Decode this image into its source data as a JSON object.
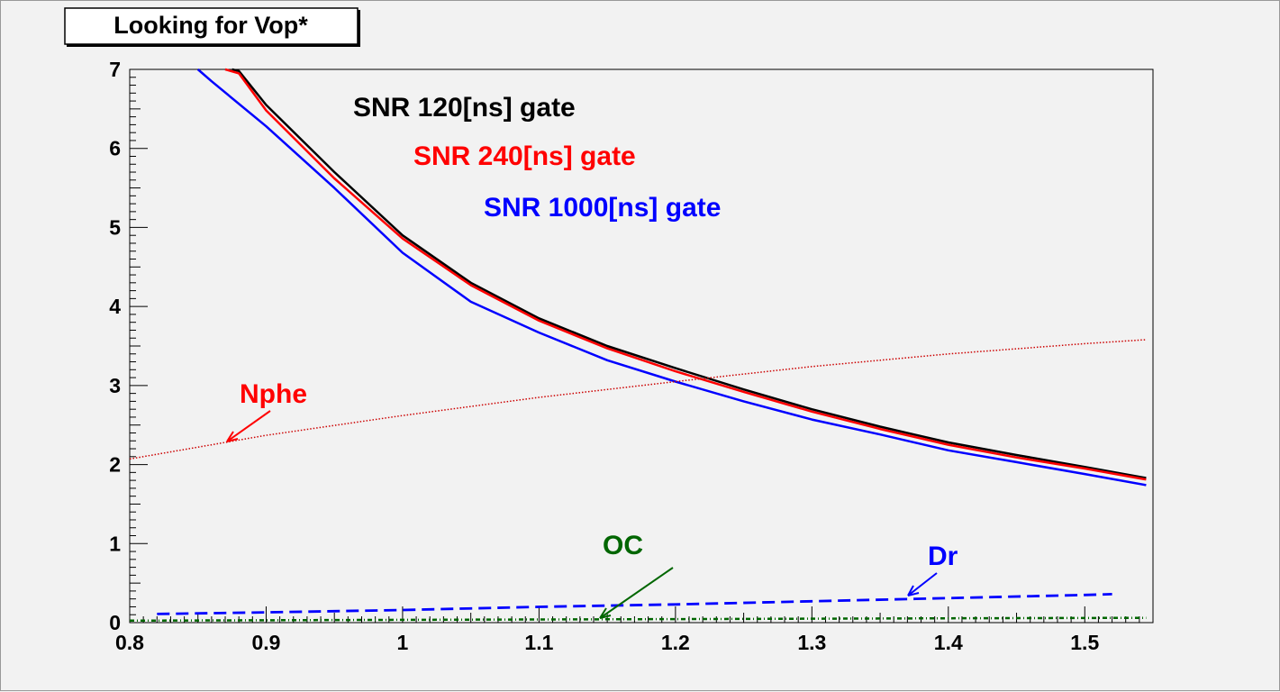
{
  "chart_data": {
    "type": "line",
    "title": "Looking for Vop*",
    "xlim": [
      0.8,
      1.55
    ],
    "ylim": [
      0,
      7
    ],
    "x_ticks": [
      "0.8",
      "0.9",
      "1",
      "1.1",
      "1.2",
      "1.3",
      "1.4",
      "1.5"
    ],
    "y_ticks": [
      "0",
      "1",
      "2",
      "3",
      "4",
      "5",
      "6",
      "7"
    ],
    "grid": false,
    "legend_placement": "top-center, inline text",
    "series": [
      {
        "name": "SNR 120[ns] gate",
        "color": "#000000",
        "style": "solid",
        "points": [
          [
            0.875,
            7.0
          ],
          [
            0.88,
            6.98
          ],
          [
            0.9,
            6.55
          ],
          [
            0.95,
            5.7
          ],
          [
            1.0,
            4.9
          ],
          [
            1.05,
            4.3
          ],
          [
            1.1,
            3.85
          ],
          [
            1.15,
            3.5
          ],
          [
            1.2,
            3.22
          ],
          [
            1.25,
            2.95
          ],
          [
            1.3,
            2.7
          ],
          [
            1.35,
            2.48
          ],
          [
            1.4,
            2.28
          ],
          [
            1.45,
            2.12
          ],
          [
            1.5,
            1.97
          ],
          [
            1.545,
            1.83
          ]
        ]
      },
      {
        "name": "SNR 240[ns] gate",
        "color": "#ff0000",
        "style": "solid",
        "points": [
          [
            0.87,
            7.0
          ],
          [
            0.88,
            6.95
          ],
          [
            0.9,
            6.48
          ],
          [
            0.95,
            5.62
          ],
          [
            1.0,
            4.86
          ],
          [
            1.05,
            4.27
          ],
          [
            1.1,
            3.82
          ],
          [
            1.15,
            3.47
          ],
          [
            1.2,
            3.18
          ],
          [
            1.25,
            2.92
          ],
          [
            1.3,
            2.67
          ],
          [
            1.35,
            2.45
          ],
          [
            1.4,
            2.25
          ],
          [
            1.45,
            2.09
          ],
          [
            1.5,
            1.95
          ],
          [
            1.545,
            1.81
          ]
        ]
      },
      {
        "name": "SNR 1000[ns] gate",
        "color": "#0000ff",
        "style": "solid",
        "points": [
          [
            0.85,
            7.0
          ],
          [
            0.86,
            6.85
          ],
          [
            0.9,
            6.28
          ],
          [
            0.95,
            5.5
          ],
          [
            1.0,
            4.68
          ],
          [
            1.05,
            4.06
          ],
          [
            1.1,
            3.67
          ],
          [
            1.15,
            3.32
          ],
          [
            1.2,
            3.05
          ],
          [
            1.25,
            2.8
          ],
          [
            1.3,
            2.57
          ],
          [
            1.35,
            2.38
          ],
          [
            1.4,
            2.18
          ],
          [
            1.45,
            2.03
          ],
          [
            1.5,
            1.88
          ],
          [
            1.545,
            1.74
          ]
        ]
      },
      {
        "name": "Nphe",
        "color": "#cc0000",
        "style": "dotted",
        "points": [
          [
            0.8,
            2.07
          ],
          [
            0.9,
            2.37
          ],
          [
            1.0,
            2.62
          ],
          [
            1.1,
            2.85
          ],
          [
            1.2,
            3.05
          ],
          [
            1.3,
            3.24
          ],
          [
            1.4,
            3.4
          ],
          [
            1.5,
            3.53
          ],
          [
            1.545,
            3.58
          ]
        ]
      },
      {
        "name": "Dr",
        "color": "#0000ff",
        "style": "dashed",
        "points": [
          [
            0.82,
            0.11
          ],
          [
            0.9,
            0.13
          ],
          [
            1.0,
            0.16
          ],
          [
            1.1,
            0.2
          ],
          [
            1.2,
            0.23
          ],
          [
            1.3,
            0.27
          ],
          [
            1.4,
            0.31
          ],
          [
            1.5,
            0.35
          ],
          [
            1.52,
            0.36
          ]
        ]
      },
      {
        "name": "OC",
        "color": "#006600",
        "style": "dash-dot",
        "points": [
          [
            0.8,
            0.025
          ],
          [
            1.0,
            0.035
          ],
          [
            1.2,
            0.045
          ],
          [
            1.4,
            0.055
          ],
          [
            1.545,
            0.06
          ]
        ]
      }
    ],
    "annotations": [
      {
        "text": "SNR 120[ns] gate",
        "color": "#000000"
      },
      {
        "text": "SNR 240[ns] gate",
        "color": "#ff0000"
      },
      {
        "text": "SNR 1000[ns] gate",
        "color": "#0000ff"
      },
      {
        "text": "Nphe",
        "color": "#ff0000",
        "points_to": [
          0.87,
          2.3
        ]
      },
      {
        "text": "OC",
        "color": "#006600",
        "points_to": [
          1.14,
          0.05
        ]
      },
      {
        "text": "Dr",
        "color": "#0000ff",
        "points_to": [
          1.37,
          0.3
        ]
      }
    ]
  }
}
